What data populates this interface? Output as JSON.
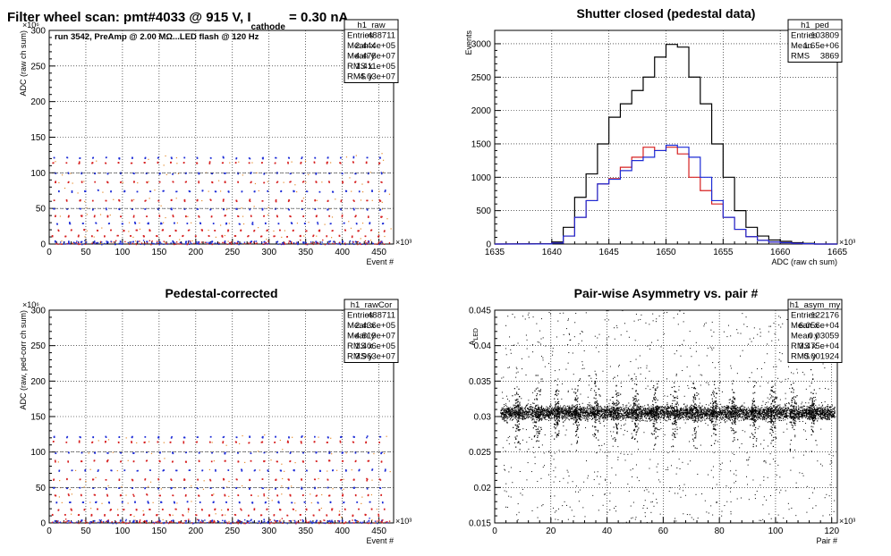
{
  "main_title": {
    "prefix": "Filter wheel scan: pmt#4033 @   915 V, I",
    "subscript": "cathode",
    "suffix": " = 0.30 nA"
  },
  "chart_data": [
    {
      "id": "raw",
      "type": "scatter",
      "title": "",
      "annotation": "run 3542, PreAmp @ 2.00 MΩ...LED flash @  120 Hz",
      "xlabel": "Event #",
      "ylabel": "ADC (raw ch sum)",
      "x_multiplier": "×10³",
      "y_multiplier": "×10⁶",
      "xlim": [
        0,
        470
      ],
      "ylim": [
        0,
        300
      ],
      "x_ticks": [
        0,
        50,
        100,
        150,
        200,
        250,
        300,
        350,
        400,
        450
      ],
      "y_ticks": [
        0,
        50,
        100,
        150,
        200,
        250,
        300
      ],
      "levels": [
        4,
        12,
        20,
        30,
        40,
        50,
        62,
        75,
        88,
        100,
        115,
        122
      ],
      "level_blue": [
        4,
        30,
        50,
        75,
        100,
        122
      ],
      "stats": {
        "name": "h1_raw",
        "rows": [
          [
            "Entries",
            "488711"
          ],
          [
            "Mean x",
            "2.444e+05"
          ],
          [
            "Mean y",
            "4.478e+07"
          ],
          [
            "RMS x",
            "1.411e+05"
          ],
          [
            "RMS y",
            "4.03e+07"
          ]
        ]
      }
    },
    {
      "id": "ped",
      "type": "line",
      "title": "Shutter closed (pedestal data)",
      "xlabel": "ADC (raw ch sum)",
      "ylabel": "Events",
      "x_multiplier": "×10³",
      "xlim": [
        1635,
        1665
      ],
      "ylim": [
        0,
        3200
      ],
      "x_ticks": [
        1635,
        1640,
        1645,
        1650,
        1655,
        1660,
        1665
      ],
      "y_ticks": [
        0,
        500,
        1000,
        1500,
        2000,
        2500,
        3000
      ],
      "x": [
        1639,
        1640,
        1641,
        1642,
        1643,
        1644,
        1645,
        1646,
        1647,
        1648,
        1649,
        1650,
        1651,
        1652,
        1653,
        1654,
        1655,
        1656,
        1657,
        1658,
        1659,
        1660,
        1661,
        1662
      ],
      "series": [
        {
          "color": "#000000",
          "values": [
            5,
            30,
            250,
            700,
            1050,
            1500,
            1900,
            2100,
            2300,
            2500,
            2800,
            2990,
            2950,
            2500,
            2100,
            1500,
            1000,
            500,
            250,
            120,
            60,
            40,
            20,
            10
          ]
        },
        {
          "color": "#d62020",
          "values": [
            2,
            15,
            120,
            400,
            650,
            900,
            980,
            1150,
            1300,
            1450,
            1400,
            1450,
            1350,
            1000,
            800,
            600,
            400,
            220,
            110,
            55,
            30,
            20,
            10,
            5
          ]
        },
        {
          "color": "#1c2bd6",
          "values": [
            2,
            15,
            120,
            400,
            650,
            900,
            970,
            1100,
            1250,
            1300,
            1400,
            1480,
            1450,
            1300,
            1000,
            650,
            400,
            220,
            110,
            55,
            30,
            20,
            10,
            5
          ]
        }
      ],
      "stats": {
        "name": "h1_ped",
        "rows": [
          [
            "Entries",
            "103809"
          ],
          [
            "Mean",
            "1.65e+06"
          ],
          [
            "RMS",
            "3869"
          ]
        ]
      }
    },
    {
      "id": "rawCor",
      "type": "scatter",
      "title": "Pedestal-corrected",
      "xlabel": "Event #",
      "ylabel": "ADC (raw, ped-corr ch sum)",
      "x_multiplier": "×10³",
      "y_multiplier": "×10⁶",
      "xlim": [
        0,
        470
      ],
      "ylim": [
        0,
        300
      ],
      "x_ticks": [
        0,
        50,
        100,
        150,
        200,
        250,
        300,
        350,
        400,
        450
      ],
      "y_ticks": [
        0,
        50,
        100,
        150,
        200,
        250,
        300
      ],
      "levels": [
        4,
        12,
        20,
        30,
        40,
        50,
        62,
        75,
        88,
        100,
        115,
        122
      ],
      "level_blue": [
        4,
        30,
        50,
        75,
        100,
        122
      ],
      "stats": {
        "name": "h1_rawCor",
        "rows": [
          [
            "Entries",
            "488711"
          ],
          [
            "Mean x",
            "2.436e+05"
          ],
          [
            "Mean y",
            "4.819e+07"
          ],
          [
            "RMS x",
            "1.406e+05"
          ],
          [
            "RMS y",
            "3.963e+07"
          ]
        ]
      }
    },
    {
      "id": "asym",
      "type": "scatter",
      "title": "Pair-wise Asymmetry vs. pair #",
      "xlabel": "Pair #",
      "ylabel": "A_LED",
      "ylabel_main": "A",
      "ylabel_sub": "LED",
      "x_multiplier": "×10³",
      "xlim": [
        0,
        122
      ],
      "ylim": [
        0.015,
        0.045
      ],
      "x_ticks": [
        0,
        20,
        40,
        60,
        80,
        100,
        120
      ],
      "y_ticks": [
        0.015,
        0.02,
        0.025,
        0.03,
        0.035,
        0.04,
        0.045
      ],
      "y_tick_labels": [
        "0.015",
        "0.02",
        "0.025",
        "0.03",
        "0.035",
        "0.04",
        "0.045"
      ],
      "band_center": 0.0306,
      "band_width": 0.0009,
      "band_x": [
        2,
        121
      ],
      "spikes_x": [
        8,
        15,
        22,
        29,
        36,
        43,
        50,
        57,
        64,
        71,
        78,
        85,
        92,
        99,
        106,
        113
      ],
      "stats": {
        "name": "h1_asym_my",
        "rows": [
          [
            "Entries",
            "122176"
          ],
          [
            "Mean x",
            "6.056e+04"
          ],
          [
            "Mean y",
            "0.03059"
          ],
          [
            "RMS x",
            "3.475e+04"
          ],
          [
            "RMS y",
            "0.001924"
          ]
        ]
      }
    }
  ]
}
